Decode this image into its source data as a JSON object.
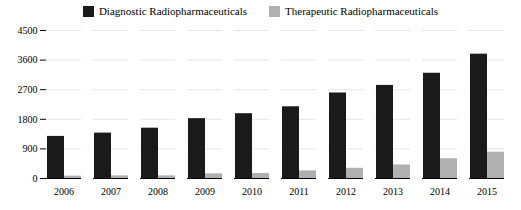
{
  "chart_data": {
    "type": "bar",
    "categories": [
      "2006",
      "2007",
      "2008",
      "2009",
      "2010",
      "2011",
      "2012",
      "2013",
      "2014",
      "2015"
    ],
    "series": [
      {
        "name": "Diagnostic Radiopharmaceuticals",
        "color": "#1a1a1a",
        "values": [
          1280,
          1380,
          1530,
          1820,
          1970,
          2180,
          2600,
          2830,
          3200,
          3780
        ]
      },
      {
        "name": "Therapeutic Radiopharmaceuticals",
        "color": "#b0b0b0",
        "values": [
          70,
          80,
          80,
          140,
          150,
          230,
          310,
          410,
          600,
          800
        ]
      }
    ],
    "ylim": [
      0,
      4500
    ],
    "yticks": [
      0,
      900,
      1800,
      2700,
      3600,
      4500
    ],
    "grid": true,
    "legend": "top"
  }
}
